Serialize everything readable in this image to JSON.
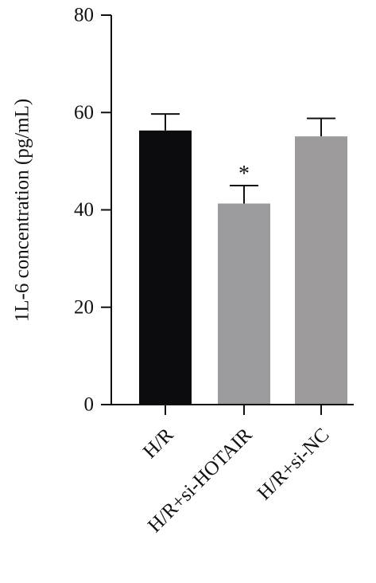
{
  "chart_data": {
    "type": "bar",
    "title": "",
    "xlabel": "",
    "ylabel": "1L-6 concentration (pg/mL)",
    "ylim": [
      0,
      80
    ],
    "yticks": [
      0,
      20,
      40,
      60,
      80
    ],
    "categories": [
      "H/R",
      "H/R+si-HOTAIR",
      "H/R+si-NC"
    ],
    "values": [
      56.3,
      41.3,
      55.1
    ],
    "errors": [
      3.4,
      3.7,
      3.7
    ],
    "bar_colors": [
      "#0c0c0e",
      "#9b9b9d",
      "#9c9a9a"
    ],
    "annotations": [
      "",
      "*",
      ""
    ],
    "grid": false
  }
}
